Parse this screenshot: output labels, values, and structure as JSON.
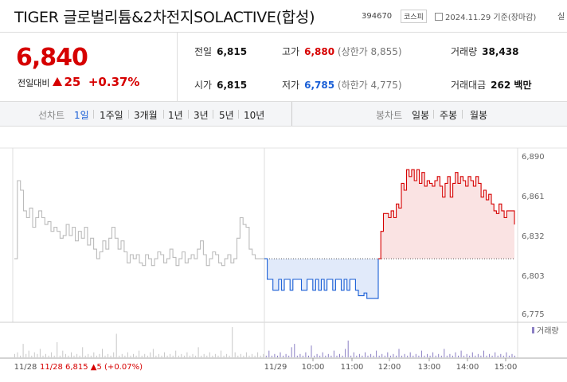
{
  "header": {
    "title": "TIGER 글로벌리튬&2차전지SOLACTIVE(합성)",
    "code": "394670",
    "market": "코스피",
    "date": "2024.11.29 기준(장마감)",
    "extra": "실"
  },
  "price": {
    "current": "6,840",
    "change_label": "전일대비",
    "change": "25",
    "change_pct": "+0.37%"
  },
  "stats": {
    "prev_label": "전일",
    "prev": "6,815",
    "high_label": "고가",
    "high": "6,880",
    "upper_limit": "(상한가 8,855)",
    "volume_label": "거래량",
    "volume": "38,438",
    "open_label": "시가",
    "open": "6,815",
    "low_label": "저가",
    "low": "6,785",
    "lower_limit": "(하한가 4,775)",
    "amount_label": "거래대금",
    "amount": "262 백만"
  },
  "tabs": {
    "line_label": "선차트",
    "line": [
      "1일",
      "1주일",
      "3개월",
      "1년",
      "3년",
      "5년",
      "10년"
    ],
    "candle_label": "봉차트",
    "candle": [
      "일봉",
      "주봉",
      "월봉"
    ]
  },
  "volume_legend": "거래량",
  "prev_day_text": "11/28  6,815 ▲5 (+0.07%)",
  "colors": {
    "up": "#d60000",
    "down": "#1a5fd6",
    "prev": "#bbbbbb"
  },
  "chart_data": {
    "type": "line",
    "y_ticks": [
      "6,890",
      "6,861",
      "6,832",
      "6,803",
      "6,775"
    ],
    "ylim": [
      6775,
      6890
    ],
    "baseline": 6815,
    "x_ticks": [
      "11/28",
      "11/29",
      "10:00",
      "11:00",
      "12:00",
      "13:00",
      "14:00",
      "15:00"
    ],
    "series": [
      {
        "segment": "prev_day",
        "values": [
          6815,
          6872,
          6865,
          6850,
          6845,
          6852,
          6838,
          6845,
          6850,
          6845,
          6840,
          6842,
          6835,
          6838,
          6835,
          6830,
          6832,
          6840,
          6832,
          6838,
          6828,
          6835,
          6830,
          6838,
          6825,
          6830,
          6822,
          6815,
          6820,
          6828,
          6822,
          6830,
          6838,
          6830,
          6822,
          6828,
          6820,
          6812,
          6818,
          6815,
          6818,
          6812,
          6810,
          6818,
          6815,
          6810,
          6815,
          6820,
          6818,
          6812,
          6815,
          6822,
          6816,
          6810,
          6815,
          6820,
          6812,
          6815,
          6818,
          6815,
          6822,
          6828,
          6818,
          6810,
          6815,
          6820,
          6818,
          6812,
          6810,
          6815,
          6818,
          6812,
          6815,
          6830,
          6845,
          6840,
          6838,
          6822,
          6818,
          6815,
          6815,
          6815,
          6815
        ]
      },
      {
        "segment": "today_down",
        "values": [
          6815,
          6800,
          6800,
          6792,
          6792,
          6800,
          6792,
          6800,
          6800,
          6792,
          6800,
          6800,
          6800,
          6792,
          6792,
          6800,
          6800,
          6792,
          6800,
          6792,
          6800,
          6792,
          6800,
          6800,
          6792,
          6800,
          6800,
          6792,
          6800,
          6792,
          6800,
          6800,
          6792,
          6788,
          6788,
          6790,
          6786,
          6786,
          6786,
          6786,
          6815
        ]
      },
      {
        "segment": "today_up",
        "values": [
          6815,
          6835,
          6848,
          6848,
          6845,
          6850,
          6845,
          6855,
          6852,
          6870,
          6865,
          6880,
          6875,
          6880,
          6872,
          6880,
          6870,
          6878,
          6868,
          6872,
          6870,
          6868,
          6872,
          6875,
          6868,
          6860,
          6870,
          6875,
          6860,
          6870,
          6878,
          6870,
          6875,
          6872,
          6868,
          6875,
          6872,
          6868,
          6875,
          6870,
          6860,
          6865,
          6858,
          6862,
          6855,
          6850,
          6848,
          6855,
          6850,
          6845,
          6850,
          6850,
          6850,
          6840
        ]
      }
    ],
    "volume": [
      2,
      3,
      1,
      8,
      2,
      4,
      1,
      3,
      2,
      5,
      1,
      2,
      1,
      3,
      1,
      9,
      1,
      4,
      2,
      1,
      3,
      1,
      2,
      1,
      6,
      1,
      2,
      1,
      3,
      1,
      2,
      5,
      1,
      2,
      1,
      3,
      14,
      1,
      2,
      1,
      3,
      1,
      2,
      1,
      4,
      1,
      2,
      1,
      3,
      5,
      1,
      2,
      1,
      3,
      1,
      2,
      1,
      4,
      1,
      2,
      1,
      3,
      1,
      2,
      1,
      6,
      1,
      2,
      1,
      3,
      1,
      2,
      1,
      4,
      1,
      2,
      1,
      18,
      3,
      1,
      2,
      1,
      3,
      1,
      2,
      1,
      3,
      1,
      2,
      1,
      4,
      1,
      2,
      1,
      3,
      1,
      2,
      1,
      6,
      8,
      1,
      2,
      1,
      3,
      1,
      7,
      1,
      2,
      1,
      3,
      1,
      2,
      1,
      4,
      1,
      2,
      1,
      5,
      10,
      1,
      3,
      1,
      2,
      1,
      3,
      1,
      2,
      1,
      4,
      1,
      2,
      1,
      3,
      1,
      2,
      1,
      5,
      1,
      2,
      1,
      3,
      1,
      2,
      1,
      4,
      1,
      2,
      1,
      3,
      1,
      2,
      1,
      5,
      1,
      2,
      1,
      3,
      1,
      4,
      1,
      2,
      1,
      3,
      1,
      2,
      1,
      4,
      1,
      2,
      1,
      3,
      1,
      2,
      1,
      3,
      1,
      2,
      1
    ]
  }
}
